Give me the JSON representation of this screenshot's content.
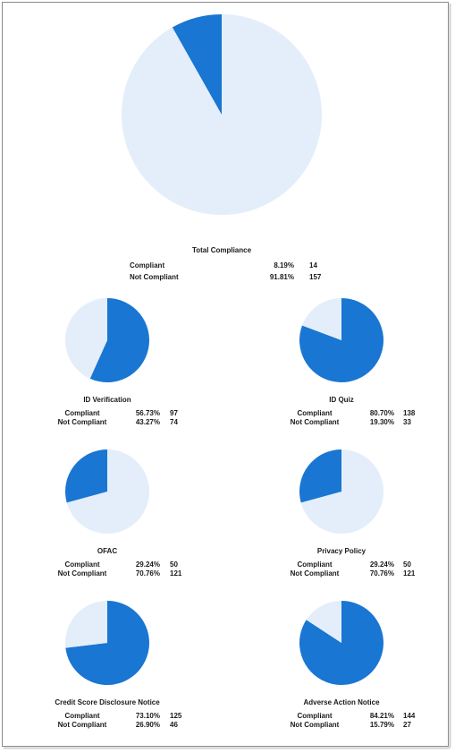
{
  "chart_data": [
    {
      "type": "pie",
      "title": "Total Compliance",
      "categories": [
        "Compliant",
        "Not Compliant"
      ],
      "values": [
        8.19,
        91.81
      ],
      "value_labels": [
        "8.19%",
        "91.81%"
      ],
      "counts": [
        14,
        157
      ],
      "colors": [
        "#1976d2",
        "#e3eefa"
      ]
    },
    {
      "type": "pie",
      "title": "ID Verification",
      "categories": [
        "Compliant",
        "Not Compliant"
      ],
      "values": [
        56.73,
        43.27
      ],
      "value_labels": [
        "56.73%",
        "43.27%"
      ],
      "counts": [
        97,
        74
      ],
      "colors": [
        "#1976d2",
        "#e3eefa"
      ]
    },
    {
      "type": "pie",
      "title": "ID Quiz",
      "categories": [
        "Compliant",
        "Not Compliant"
      ],
      "values": [
        80.7,
        19.3
      ],
      "value_labels": [
        "80.70%",
        "19.30%"
      ],
      "counts": [
        138,
        33
      ],
      "colors": [
        "#1976d2",
        "#e3eefa"
      ]
    },
    {
      "type": "pie",
      "title": "OFAC",
      "categories": [
        "Compliant",
        "Not Compliant"
      ],
      "values": [
        29.24,
        70.76
      ],
      "value_labels": [
        "29.24%",
        "70.76%"
      ],
      "counts": [
        50,
        121
      ],
      "colors": [
        "#1976d2",
        "#e3eefa"
      ]
    },
    {
      "type": "pie",
      "title": "Privacy Policy",
      "categories": [
        "Compliant",
        "Not Compliant"
      ],
      "values": [
        29.24,
        70.76
      ],
      "value_labels": [
        "29.24%",
        "70.76%"
      ],
      "counts": [
        50,
        121
      ],
      "colors": [
        "#1976d2",
        "#e3eefa"
      ]
    },
    {
      "type": "pie",
      "title": "Credit Score Disclosure Notice",
      "categories": [
        "Compliant",
        "Not Compliant"
      ],
      "values": [
        73.1,
        26.9
      ],
      "value_labels": [
        "73.10%",
        "26.90%"
      ],
      "counts": [
        125,
        46
      ],
      "colors": [
        "#1976d2",
        "#e3eefa"
      ]
    },
    {
      "type": "pie",
      "title": "Adverse Action Notice",
      "categories": [
        "Compliant",
        "Not Compliant"
      ],
      "values": [
        84.21,
        15.79
      ],
      "value_labels": [
        "84.21%",
        "15.79%"
      ],
      "counts": [
        144,
        27
      ],
      "colors": [
        "#1976d2",
        "#e3eefa"
      ]
    }
  ]
}
